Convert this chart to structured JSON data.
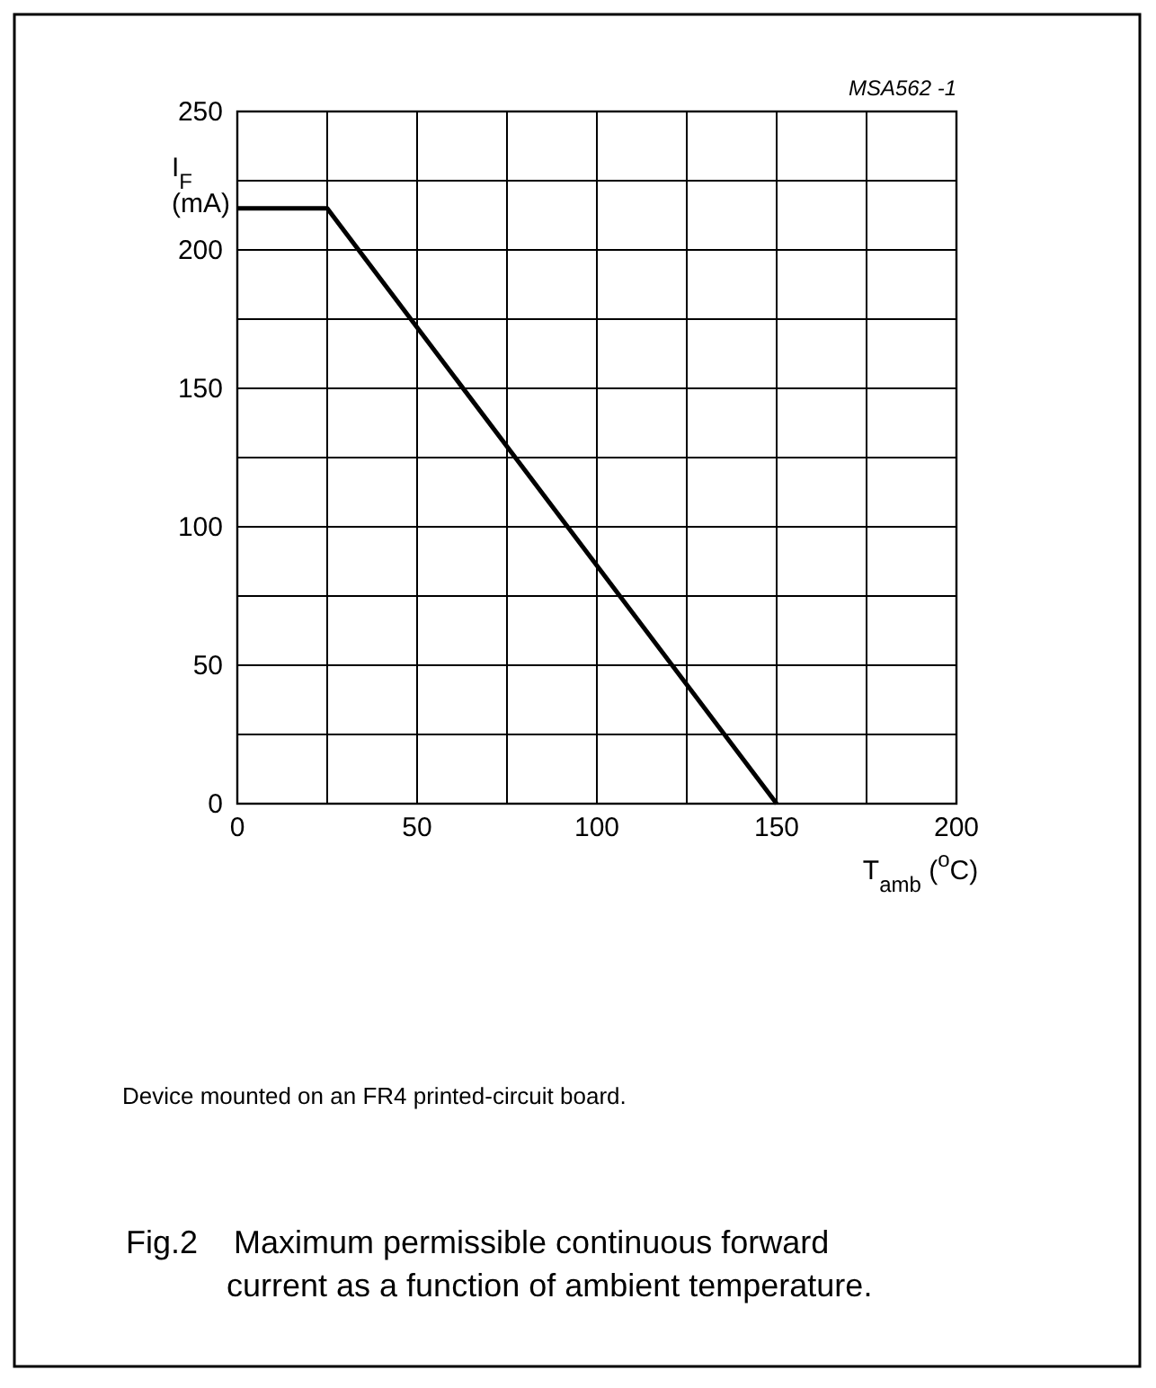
{
  "chart_data": {
    "type": "line",
    "title": "Fig.2    Maximum permissible continuous forward current as a function of ambient temperature.",
    "xlabel": "T$_{amb}$ ($^{o}$C)",
    "ylabel": "I$_{F}$\n(mA)",
    "annotations": [
      "MSA562 -1",
      "Device mounted on an FR4 printed-circuit board."
    ],
    "series": [
      {
        "color": "#000000",
        "x": [
          0,
          25,
          150
        ],
        "values": [
          215,
          215,
          0
        ]
      }
    ],
    "xlim": [
      0,
      200
    ],
    "ylim": [
      0,
      250
    ],
    "xticks": [
      0,
      {
        "value": 25,
        "label": null
      },
      50,
      {
        "value": 75,
        "label": null
      },
      100,
      {
        "value": 125,
        "label": null
      },
      150,
      {
        "value": 175,
        "label": null
      },
      200
    ],
    "yticks": [
      0,
      {
        "value": 25,
        "label": null
      },
      50,
      {
        "value": 75,
        "label": null
      },
      100,
      {
        "value": 125,
        "label": null
      },
      150,
      {
        "value": 175,
        "label": null
      },
      200,
      {
        "value": 225,
        "label": null
      },
      250
    ],
    "grid": true,
    "marker": "none",
    "line_style": "solid"
  }
}
